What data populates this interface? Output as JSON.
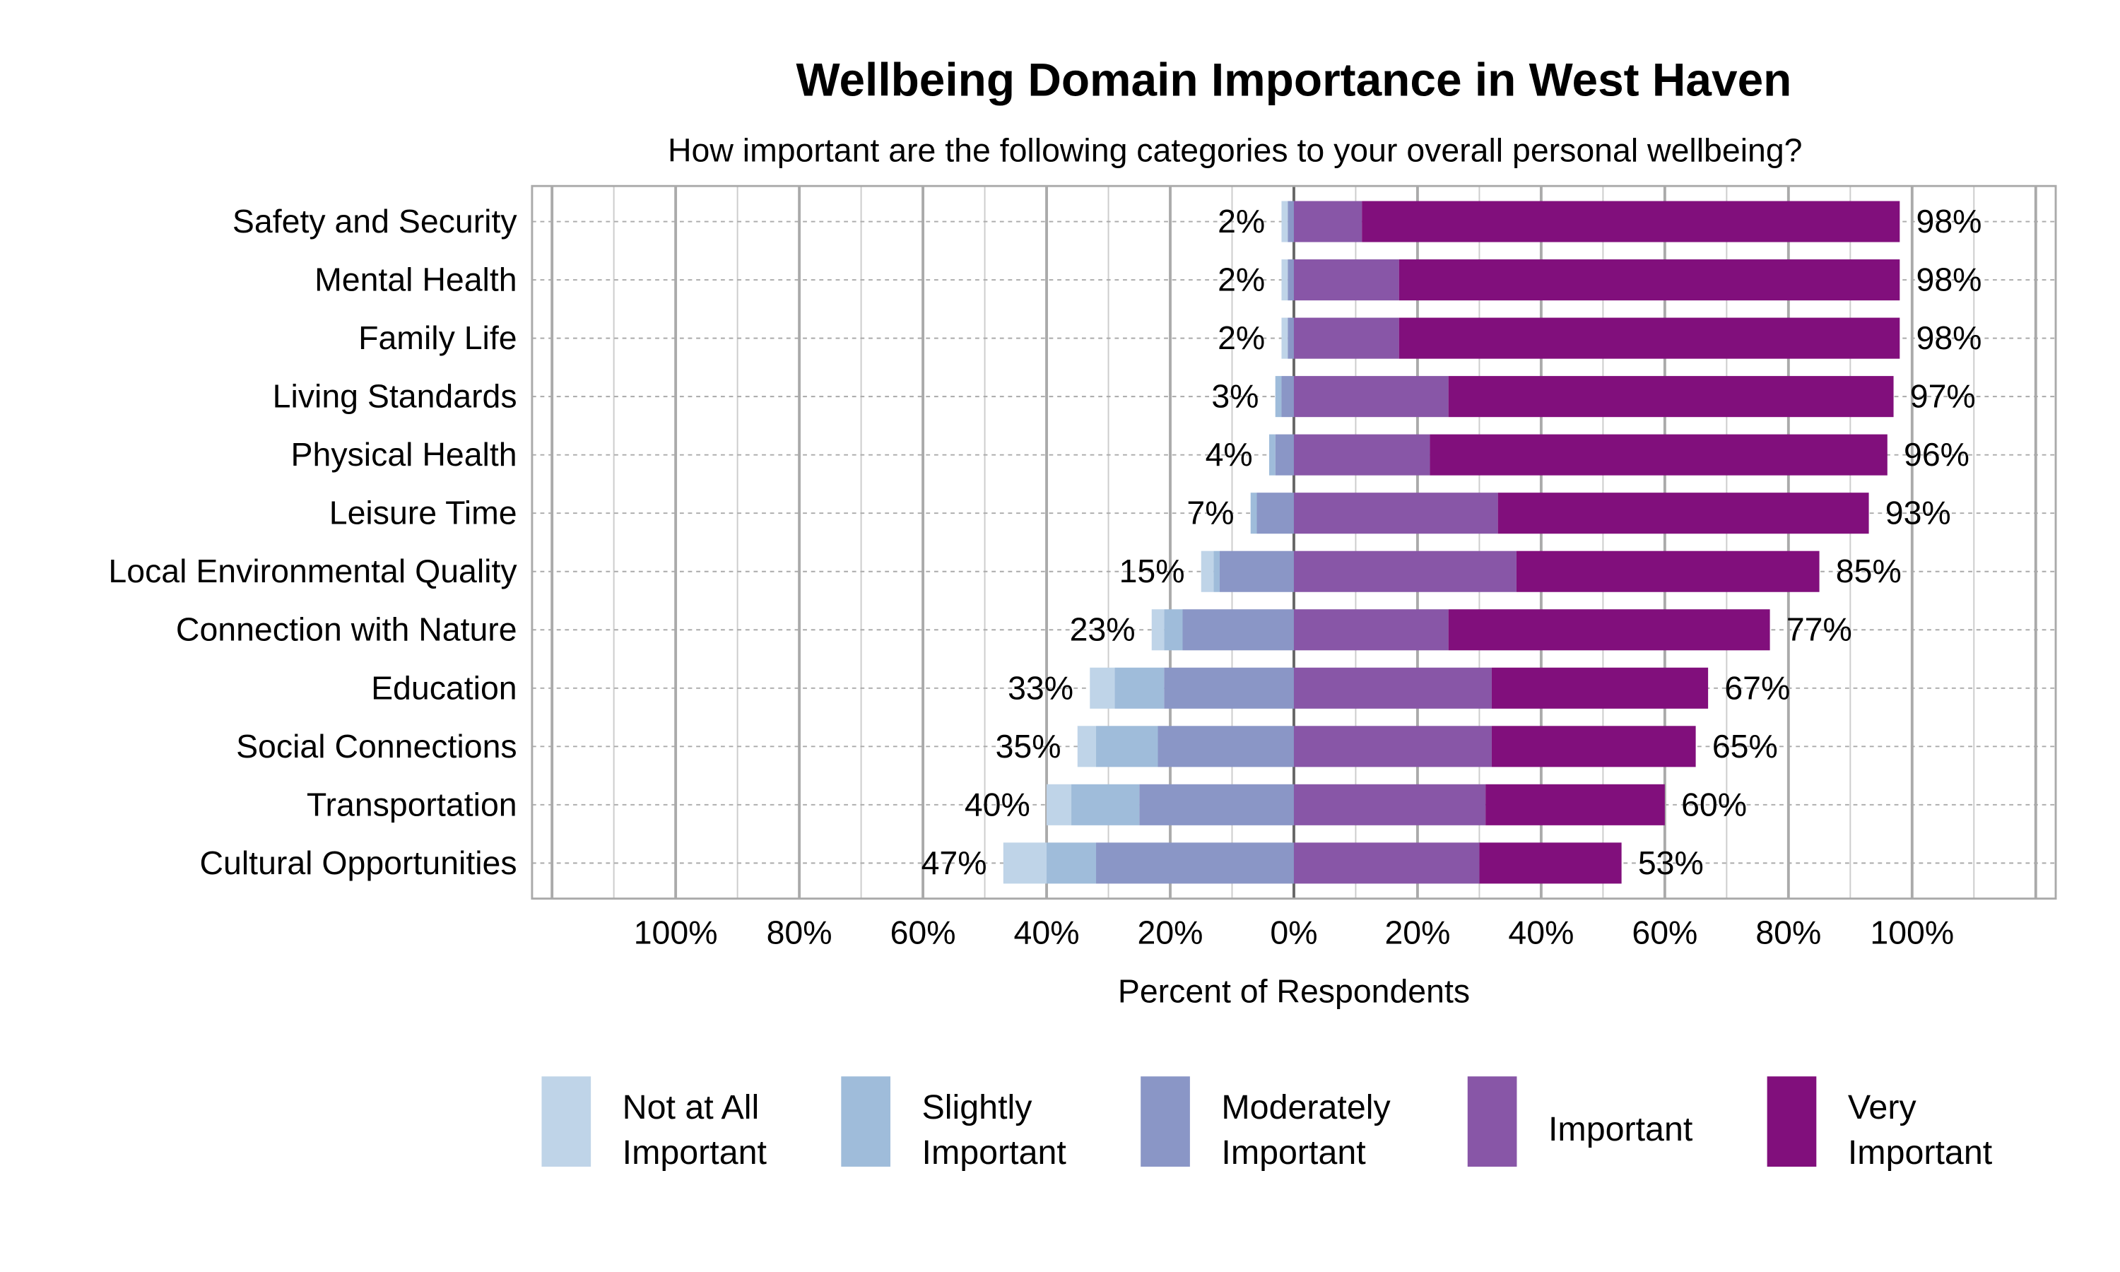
{
  "chart_data": {
    "type": "bar",
    "orientation": "horizontal",
    "stacked": "diverging",
    "title": "Wellbeing Domain Importance in West Haven",
    "subtitle": "How important are the following categories to your overall personal wellbeing?",
    "xlabel": "Percent of Respondents",
    "xlim": [
      -100,
      100
    ],
    "grid": true,
    "legend_placement": "bottom",
    "tick_values": [
      -100,
      -80,
      -60,
      -40,
      -20,
      0,
      20,
      40,
      60,
      80,
      100
    ],
    "tick_labels": [
      "100%",
      "80%",
      "60%",
      "40%",
      "20%",
      "0%",
      "20%",
      "40%",
      "60%",
      "80%",
      "100%"
    ],
    "categories": [
      "Safety and Security",
      "Mental Health",
      "Family Life",
      "Living Standards",
      "Physical Health",
      "Leisure Time",
      "Local Environmental Quality",
      "Connection with Nature",
      "Education",
      "Social Connections",
      "Transportation",
      "Cultural Opportunities"
    ],
    "series": [
      {
        "name": "Not at All Important",
        "side": "left",
        "color": "#bfd4e8",
        "values": [
          1,
          1,
          1,
          0,
          0,
          0,
          2,
          2,
          4,
          3,
          4,
          7
        ]
      },
      {
        "name": "Slightly Important",
        "side": "left",
        "color": "#9fbcda",
        "values": [
          0,
          0,
          0,
          1,
          1,
          1,
          1,
          3,
          8,
          10,
          11,
          8
        ]
      },
      {
        "name": "Moderately Important",
        "side": "left",
        "color": "#8a96c6",
        "values": [
          1,
          1,
          1,
          2,
          3,
          6,
          12,
          18,
          21,
          22,
          25,
          32
        ]
      },
      {
        "name": "Important",
        "side": "right",
        "color": "#8856a7",
        "values": [
          11,
          17,
          17,
          25,
          22,
          33,
          36,
          25,
          32,
          32,
          31,
          30
        ]
      },
      {
        "name": "Very Important",
        "side": "right",
        "color": "#810f7c",
        "values": [
          87,
          81,
          81,
          72,
          74,
          60,
          49,
          52,
          35,
          33,
          29,
          23
        ]
      }
    ],
    "left_totals": [
      "2%",
      "2%",
      "2%",
      "3%",
      "4%",
      "7%",
      "15%",
      "23%",
      "33%",
      "35%",
      "40%",
      "47%"
    ],
    "right_totals": [
      "98%",
      "98%",
      "98%",
      "97%",
      "96%",
      "93%",
      "85%",
      "77%",
      "67%",
      "65%",
      "60%",
      "53%"
    ],
    "legend": [
      {
        "line1": "Not at All",
        "line2": "Important"
      },
      {
        "line1": "Slightly",
        "line2": "Important"
      },
      {
        "line1": "Moderately",
        "line2": "Important"
      },
      {
        "line1": "Important",
        "line2": ""
      },
      {
        "line1": "Very",
        "line2": "Important"
      }
    ]
  }
}
